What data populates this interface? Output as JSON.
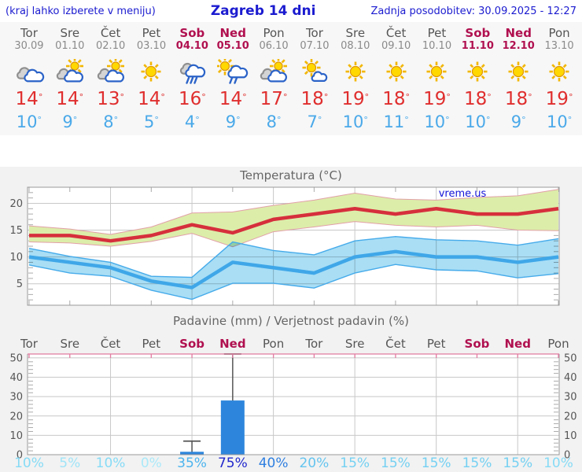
{
  "header": {
    "left_note": "(kraj lahko izberete v meniju)",
    "title": "Zagreb 14 dni",
    "updated": "Zadnja posodobitev: 30.09.2025 - 12:27"
  },
  "misc": {
    "degree": "°",
    "watermark": "vreme.us",
    "colors": {
      "header_blue": "#1b1bd0",
      "weekend": "#b0104f",
      "weekday": "#555555",
      "tmax": "#e02e2e",
      "tmin": "#4aa9e9",
      "grid": "#c8c8c8",
      "border": "#999999",
      "precip_top_border": "#e27ba0"
    }
  },
  "days": [
    {
      "name": "Tor",
      "date": "30.09",
      "weekend": false,
      "icon": "cloudy",
      "tmax": "14",
      "tmin": "10"
    },
    {
      "name": "Sre",
      "date": "01.10",
      "weekend": false,
      "icon": "partly-cloudy",
      "tmax": "14",
      "tmin": "9"
    },
    {
      "name": "Čet",
      "date": "02.10",
      "weekend": false,
      "icon": "partly-cloudy",
      "tmax": "13",
      "tmin": "8"
    },
    {
      "name": "Pet",
      "date": "03.10",
      "weekend": false,
      "icon": "sunny",
      "tmax": "14",
      "tmin": "5"
    },
    {
      "name": "Sob",
      "date": "04.10",
      "weekend": true,
      "icon": "rain",
      "tmax": "16",
      "tmin": "4"
    },
    {
      "name": "Ned",
      "date": "05.10",
      "weekend": true,
      "icon": "sun-rain",
      "tmax": "14",
      "tmin": "9"
    },
    {
      "name": "Pon",
      "date": "06.10",
      "weekend": false,
      "icon": "partly-cloudy",
      "tmax": "17",
      "tmin": "8"
    },
    {
      "name": "Tor",
      "date": "07.10",
      "weekend": false,
      "icon": "mostly-sunny",
      "tmax": "18",
      "tmin": "7"
    },
    {
      "name": "Sre",
      "date": "08.10",
      "weekend": false,
      "icon": "sunny",
      "tmax": "19",
      "tmin": "10"
    },
    {
      "name": "Čet",
      "date": "09.10",
      "weekend": false,
      "icon": "sunny",
      "tmax": "18",
      "tmin": "11"
    },
    {
      "name": "Pet",
      "date": "10.10",
      "weekend": false,
      "icon": "sunny",
      "tmax": "19",
      "tmin": "10"
    },
    {
      "name": "Sob",
      "date": "11.10",
      "weekend": true,
      "icon": "sunny",
      "tmax": "18",
      "tmin": "10"
    },
    {
      "name": "Ned",
      "date": "12.10",
      "weekend": true,
      "icon": "sunny",
      "tmax": "18",
      "tmin": "9"
    },
    {
      "name": "Pon",
      "date": "13.10",
      "weekend": false,
      "icon": "sunny",
      "tmax": "19",
      "tmin": "10"
    }
  ],
  "chart_data": [
    {
      "type": "line",
      "title": "Temperatura (°C)",
      "xlabel": "",
      "ylabel": "",
      "ylim": [
        1,
        23
      ],
      "yticks": [
        5,
        10,
        15,
        20
      ],
      "gridline_days": [
        3,
        5,
        7,
        9,
        11,
        13
      ],
      "minor_tick_days": [
        1,
        2,
        4,
        6,
        8,
        10,
        12,
        14
      ],
      "legend_position": "none",
      "grid": true,
      "watermark": "vreme.us",
      "series": [
        {
          "name": "max-temp-range",
          "kind": "band",
          "fill": "#dcedaa",
          "edge": "#e2a0a8",
          "hi": [
            15.8,
            15.2,
            14.2,
            15.6,
            18.2,
            18.4,
            19.6,
            20.6,
            21.9,
            20.8,
            20.6,
            21.1,
            21.4,
            22.6
          ],
          "lo": [
            12.8,
            12.6,
            12.0,
            12.9,
            14.4,
            11.9,
            14.7,
            15.6,
            16.6,
            15.9,
            15.6,
            15.9,
            15.0,
            14.9
          ]
        },
        {
          "name": "min-temp-range",
          "kind": "band",
          "fill": "#a9def5",
          "edge": "#46abea",
          "hi": [
            11.6,
            10.1,
            9.0,
            6.4,
            6.2,
            12.8,
            11.2,
            10.4,
            13.0,
            13.8,
            13.2,
            13.0,
            12.2,
            13.4
          ],
          "lo": [
            8.5,
            7.0,
            6.4,
            3.8,
            2.1,
            5.1,
            5.1,
            4.2,
            7.0,
            8.6,
            7.6,
            7.4,
            6.1,
            6.9
          ]
        },
        {
          "name": "max-temp",
          "kind": "line",
          "color": "#d62f3c",
          "values": [
            14,
            14,
            13,
            14,
            16,
            14.5,
            17,
            18,
            19,
            18,
            19,
            18,
            18,
            19
          ]
        },
        {
          "name": "min-temp",
          "kind": "line",
          "color": "#3fa7e8",
          "values": [
            10,
            9,
            8,
            5.5,
            4.3,
            9,
            8,
            7,
            10,
            11,
            10,
            10,
            9,
            10
          ]
        }
      ]
    },
    {
      "type": "bar",
      "title": "Padavine (mm) / Verjetnost padavin (%)",
      "categories": [
        "Tor",
        "Sre",
        "Čet",
        "Pet",
        "Sob",
        "Ned",
        "Pon",
        "Tor",
        "Sre",
        "Čet",
        "Pet",
        "Sob",
        "Ned",
        "Pon"
      ],
      "weekend_idx": [
        4,
        5,
        11,
        12
      ],
      "values_mm": [
        0,
        0,
        0,
        0,
        1.5,
        28,
        0,
        0,
        0,
        0,
        0,
        0,
        0,
        0
      ],
      "whisker_hi": [
        0,
        0,
        0,
        0,
        7,
        52,
        0,
        0,
        0,
        0,
        0,
        0,
        0,
        0
      ],
      "whisker_lo": [
        0,
        0,
        0,
        0,
        0,
        3.3,
        0,
        0,
        0,
        0,
        0,
        0,
        0,
        0
      ],
      "probabilities": [
        "10%",
        "5%",
        "10%",
        "0%",
        "35%",
        "75%",
        "40%",
        "20%",
        "15%",
        "15%",
        "15%",
        "15%",
        "15%",
        "10%"
      ],
      "prob_colors": [
        "#86dbf6",
        "#9fe4f8",
        "#86dbf6",
        "#abe9f9",
        "#4cb4ee",
        "#2228cc",
        "#2f7fe0",
        "#64c4ef",
        "#74d0f2",
        "#74d0f2",
        "#74d0f2",
        "#74d0f2",
        "#74d0f2",
        "#86dbf6"
      ],
      "ylim": [
        0,
        52
      ],
      "yticks": [
        0,
        10,
        20,
        30,
        40,
        50
      ],
      "gridline_days": [
        3,
        5,
        7,
        9,
        11,
        13
      ],
      "bar_color": "#2e86dc",
      "whisker_color": "#555555",
      "grid": true,
      "legend_position": "none"
    }
  ]
}
